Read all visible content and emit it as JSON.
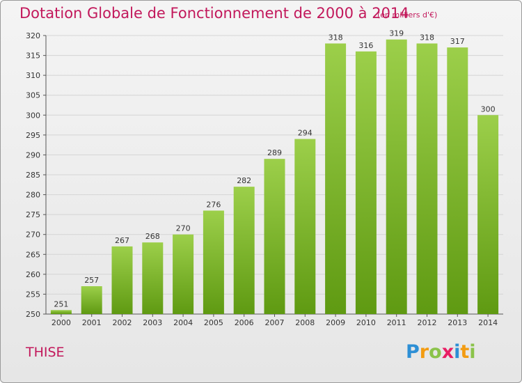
{
  "title": "Dotation Globale de Fonctionnement de 2000 à 2014",
  "unit_note": "(en milliers d'€)",
  "commune": "THISE",
  "logo": {
    "letters": [
      {
        "char": "P",
        "color": "#2d8fd5"
      },
      {
        "char": "r",
        "color": "#f39c12"
      },
      {
        "char": "o",
        "color": "#8bc34a"
      },
      {
        "char": "x",
        "color": "#e91e63"
      },
      {
        "char": "i",
        "color": "#2d8fd5"
      },
      {
        "char": "t",
        "color": "#f39c12"
      },
      {
        "char": "i",
        "color": "#8bc34a"
      }
    ]
  },
  "colors": {
    "bar_top": "#9ccf4a",
    "bar_bottom": "#5f9a12",
    "title": "#c2185b",
    "grid": "#d4d4d4",
    "axis": "#555555"
  },
  "chart_data": {
    "type": "bar",
    "title": "Dotation Globale de Fonctionnement de 2000 à 2014",
    "categories": [
      "2000",
      "2001",
      "2002",
      "2003",
      "2004",
      "2005",
      "2006",
      "2007",
      "2008",
      "2009",
      "2010",
      "2011",
      "2012",
      "2013",
      "2014"
    ],
    "values": [
      251,
      257,
      267,
      268,
      270,
      276,
      282,
      289,
      294,
      318,
      316,
      319,
      318,
      317,
      300
    ],
    "ylim": [
      250,
      320
    ],
    "yticks": [
      250,
      255,
      260,
      265,
      270,
      275,
      280,
      285,
      290,
      295,
      300,
      305,
      310,
      315,
      320
    ],
    "grid": true,
    "legend": "none"
  }
}
